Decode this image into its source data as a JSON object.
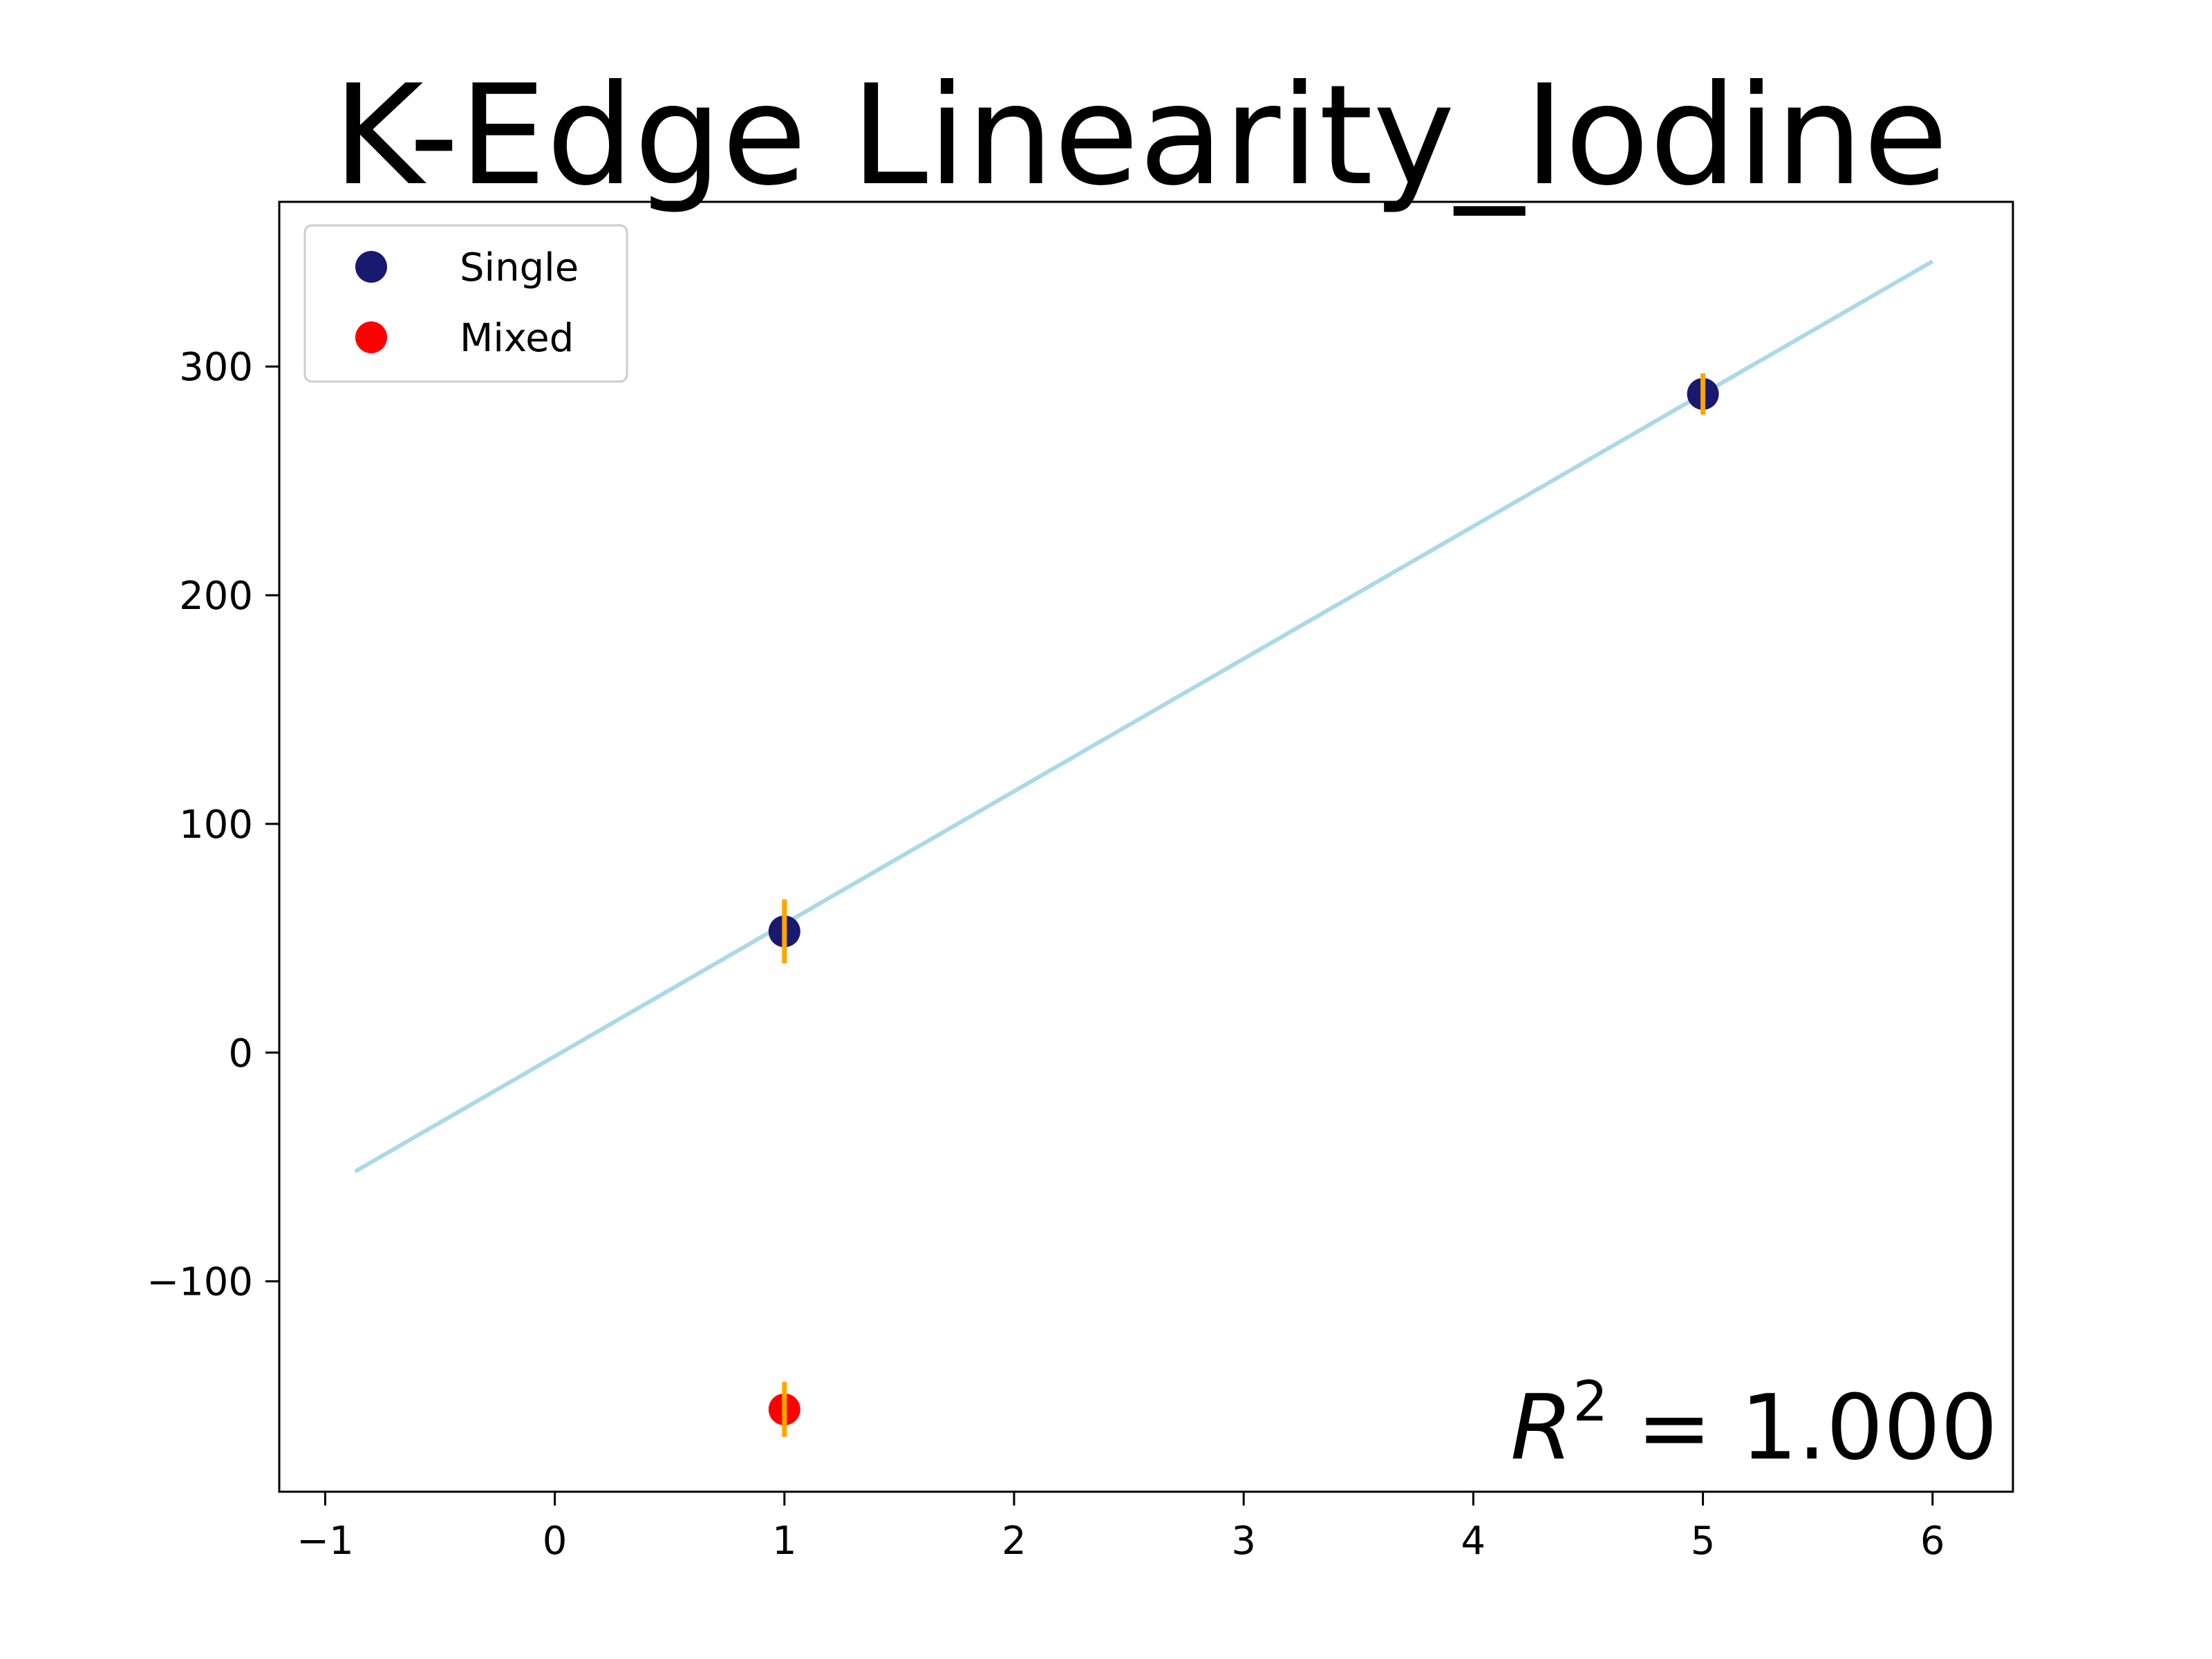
{
  "chart_data": {
    "type": "scatter",
    "title": "K-Edge Linearity_Iodine",
    "xlabel": "",
    "ylabel": "",
    "xlim": [
      -1.2,
      6.35
    ],
    "ylim": [
      -192,
      372
    ],
    "x_ticks": [
      -1,
      0,
      1,
      2,
      3,
      4,
      5,
      6
    ],
    "x_tick_labels": [
      "−1",
      "0",
      "1",
      "2",
      "3",
      "4",
      "5",
      "6"
    ],
    "y_ticks": [
      -100,
      0,
      100,
      200,
      300
    ],
    "y_tick_labels": [
      "−100",
      "0",
      "100",
      "200",
      "300"
    ],
    "grid": false,
    "legend": {
      "position": "top-left",
      "entries": [
        {
          "label": "Single",
          "color": "#191970"
        },
        {
          "label": "Mixed",
          "color": "#ff0000"
        }
      ]
    },
    "series": [
      {
        "name": "Single",
        "kind": "scatter",
        "color": "#191970",
        "points": [
          {
            "x": 1,
            "y": 53,
            "err": 14
          },
          {
            "x": 5,
            "y": 288,
            "err": 9
          }
        ]
      },
      {
        "name": "Mixed",
        "kind": "scatter",
        "color": "#ff0000",
        "points": [
          {
            "x": 1,
            "y": -156,
            "err": 12
          }
        ]
      }
    ],
    "errorbar_color": "#ffa500",
    "fit_line": {
      "color": "#add8e6",
      "x": [
        -0.87,
        6.0
      ],
      "y": [
        -52,
        346
      ]
    },
    "annotation": {
      "prefix": "R",
      "superscript": "2",
      "suffix": " = 1.000",
      "position": "bottom-right"
    }
  }
}
